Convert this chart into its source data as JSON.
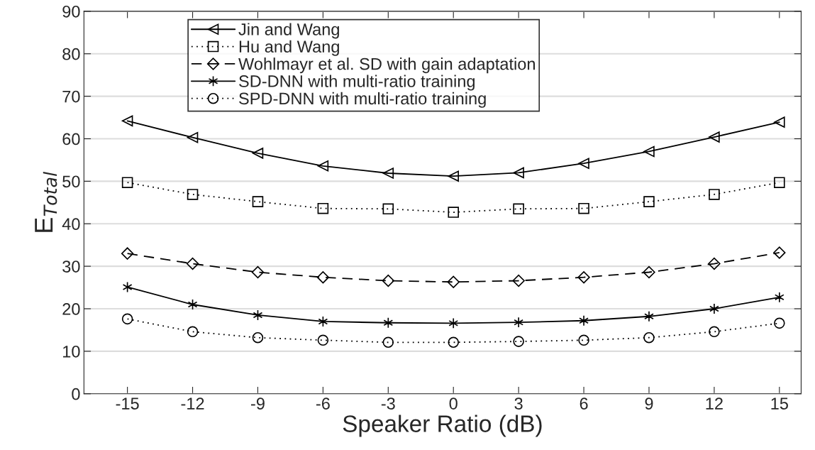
{
  "chart_data": {
    "type": "line",
    "xlabel": "Speaker Ratio (dB)",
    "ylabel": "E$_{Total}$",
    "x": [
      -15,
      -12,
      -9,
      -6,
      -3,
      0,
      3,
      6,
      9,
      12,
      15
    ],
    "series": [
      {
        "name": "Jin and Wang",
        "color": "#000000",
        "marker": "triangle",
        "line_style": "solid",
        "values": [
          64.2,
          60.3,
          56.6,
          53.6,
          51.9,
          51.2,
          52.0,
          54.2,
          57.0,
          60.4,
          63.9
        ]
      },
      {
        "name": "Hu and Wang",
        "color": "#000000",
        "marker": "square",
        "line_style": "dotted",
        "values": [
          49.7,
          46.9,
          45.2,
          43.6,
          43.5,
          42.7,
          43.5,
          43.6,
          45.2,
          46.9,
          49.7
        ]
      },
      {
        "name": "Wohlmayr et al. SD with gain adaptation",
        "color": "#000000",
        "marker": "diamond",
        "line_style": "dashed",
        "values": [
          33.0,
          30.6,
          28.6,
          27.4,
          26.6,
          26.3,
          26.6,
          27.4,
          28.6,
          30.6,
          33.2
        ]
      },
      {
        "name": "SD-DNN with multi-ratio training",
        "color": "#000000",
        "marker": "cross",
        "line_style": "solid",
        "values": [
          25.1,
          21.0,
          18.5,
          17.0,
          16.7,
          16.6,
          16.8,
          17.2,
          18.2,
          20.0,
          22.7
        ]
      },
      {
        "name": "SPD-DNN with multi-ratio training",
        "color": "#000000",
        "marker": "circle",
        "line_style": "dotted",
        "values": [
          17.6,
          14.6,
          13.2,
          12.6,
          12.1,
          12.1,
          12.3,
          12.6,
          13.2,
          14.6,
          16.6
        ]
      }
    ],
    "xlim": [
      -17,
      16
    ],
    "xticks": [
      -15,
      -12,
      -9,
      -6,
      -3,
      0,
      3,
      6,
      9,
      12,
      15
    ],
    "ylim": [
      0,
      90
    ],
    "yticks": [
      0,
      10,
      20,
      30,
      40,
      50,
      60,
      70,
      80,
      90
    ],
    "grid": "y",
    "legend": "top"
  }
}
